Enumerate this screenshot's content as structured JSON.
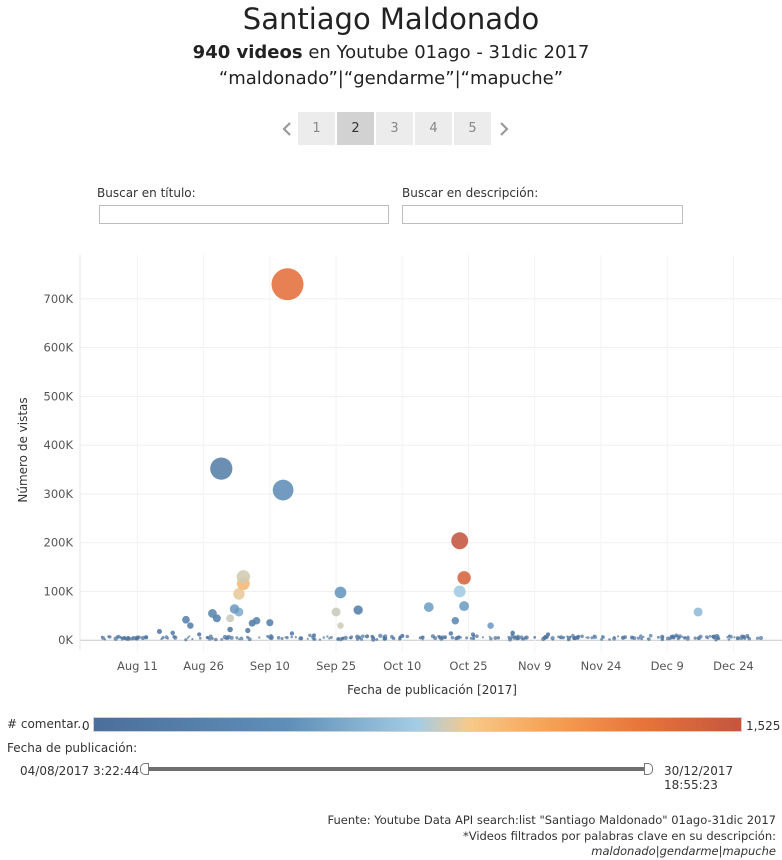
{
  "header": {
    "title": "Santiago Maldonado",
    "subtitle_bold": "940 videos",
    "subtitle_rest": " en Youtube 01ago - 31dic 2017",
    "keywords": "“maldonado”|“gendarme”|“mapuche”"
  },
  "pager": {
    "prev_icon": "chevron-left-icon",
    "next_icon": "chevron-right-icon",
    "pages": [
      "1",
      "2",
      "3",
      "4",
      "5"
    ],
    "active": "2"
  },
  "search": {
    "title_label": "Buscar en título:",
    "title_value": "",
    "description_label": "Buscar en descripción:",
    "description_value": ""
  },
  "legend": {
    "comments_label": "# comentar..",
    "comments_min": "0",
    "comments_max": "1,525",
    "colors": [
      "#4a6f9a",
      "#5f8fb8",
      "#a3cde5",
      "#f7c98a",
      "#f5a356",
      "#e8733a",
      "#c4553f"
    ],
    "date_label": "Fecha de publicación:",
    "date_start": "04/08/2017 3:22:44",
    "date_end": "30/12/2017 18:55:23"
  },
  "footer": {
    "line1": "Fuente: Youtube Data API search:list \"Santiago Maldonado\" 01ago-31dic 2017",
    "line2": "*Videos filtrados por palabras clave en su descripción:",
    "line3": "maldonado|gendarme|mapuche"
  },
  "chart_data": {
    "type": "scatter",
    "xlabel": "Fecha de publicación [2017]",
    "ylabel": "Número de vistas",
    "x_ticks": [
      "Aug 11",
      "Aug 26",
      "Sep 10",
      "Sep 25",
      "Oct 10",
      "Oct 25",
      "Nov 9",
      "Nov 24",
      "Dec 9",
      "Dec 24"
    ],
    "x_tick_days": [
      10,
      25,
      40,
      55,
      70,
      85,
      100,
      115,
      130,
      145
    ],
    "xlim_days": [
      -3,
      156
    ],
    "y_ticks": [
      0,
      100000,
      200000,
      300000,
      400000,
      500000,
      600000,
      700000
    ],
    "y_tick_labels": [
      "0K",
      "100K",
      "200K",
      "300K",
      "400K",
      "500K",
      "600K",
      "700K"
    ],
    "ylim": [
      -20000,
      790000
    ],
    "grid": true,
    "day_zero": "Aug 1",
    "points": [
      {
        "day": 44,
        "views": 730000,
        "comments": 1300
      },
      {
        "day": 29,
        "views": 352000,
        "comments": 130
      },
      {
        "day": 43,
        "views": 308000,
        "comments": 240
      },
      {
        "day": 83,
        "views": 204000,
        "comments": 1525
      },
      {
        "day": 84,
        "views": 128000,
        "comments": 1400
      },
      {
        "day": 34,
        "views": 130000,
        "comments": 650
      },
      {
        "day": 34,
        "views": 116000,
        "comments": 880
      },
      {
        "day": 33,
        "views": 95000,
        "comments": 720
      },
      {
        "day": 56,
        "views": 98000,
        "comments": 280
      },
      {
        "day": 83,
        "views": 100000,
        "comments": 500
      },
      {
        "day": 60,
        "views": 62000,
        "comments": 120
      },
      {
        "day": 76,
        "views": 68000,
        "comments": 320
      },
      {
        "day": 84,
        "views": 70000,
        "comments": 310
      },
      {
        "day": 32,
        "views": 64000,
        "comments": 300
      },
      {
        "day": 27,
        "views": 55000,
        "comments": 180
      },
      {
        "day": 33,
        "views": 58000,
        "comments": 380
      },
      {
        "day": 55,
        "views": 58000,
        "comments": 620
      },
      {
        "day": 137,
        "views": 58000,
        "comments": 430
      },
      {
        "day": 31,
        "views": 45000,
        "comments": 620
      },
      {
        "day": 37,
        "views": 40000,
        "comments": 160
      },
      {
        "day": 21,
        "views": 42000,
        "comments": 150
      },
      {
        "day": 82,
        "views": 40000,
        "comments": 200
      },
      {
        "day": 36,
        "views": 35000,
        "comments": 110
      },
      {
        "day": 40,
        "views": 36000,
        "comments": 150
      },
      {
        "day": 28,
        "views": 45000,
        "comments": 140
      },
      {
        "day": 22,
        "views": 30000,
        "comments": 130
      },
      {
        "day": 56,
        "views": 30000,
        "comments": 640
      },
      {
        "day": 90,
        "views": 30000,
        "comments": 300
      },
      {
        "day": 15,
        "views": 18000,
        "comments": 60
      },
      {
        "day": 18,
        "views": 15000,
        "comments": 100
      },
      {
        "day": 24,
        "views": 12000,
        "comments": 60
      },
      {
        "day": 31,
        "views": 22000,
        "comments": 70
      },
      {
        "day": 35,
        "views": 20000,
        "comments": 90
      },
      {
        "day": 45,
        "views": 14000,
        "comments": 120
      },
      {
        "day": 50,
        "views": 10000,
        "comments": 80
      },
      {
        "day": 62,
        "views": 8000,
        "comments": 60
      },
      {
        "day": 70,
        "views": 9000,
        "comments": 40
      },
      {
        "day": 81,
        "views": 14000,
        "comments": 90
      },
      {
        "day": 86,
        "views": 12000,
        "comments": 150
      },
      {
        "day": 95,
        "views": 15000,
        "comments": 60
      },
      {
        "day": 103,
        "views": 12000,
        "comments": 50
      },
      {
        "day": 120,
        "views": 5000,
        "comments": 30
      },
      {
        "day": 131,
        "views": 7000,
        "comments": 80
      },
      {
        "day": 146,
        "views": 4000,
        "comments": 20
      },
      {
        "day": 8,
        "views": 3000,
        "comments": 10
      },
      {
        "day": 12,
        "views": 6000,
        "comments": 20
      },
      {
        "day": 66,
        "views": 3000,
        "comments": 15
      },
      {
        "day": 109,
        "views": 4000,
        "comments": 25
      }
    ]
  }
}
